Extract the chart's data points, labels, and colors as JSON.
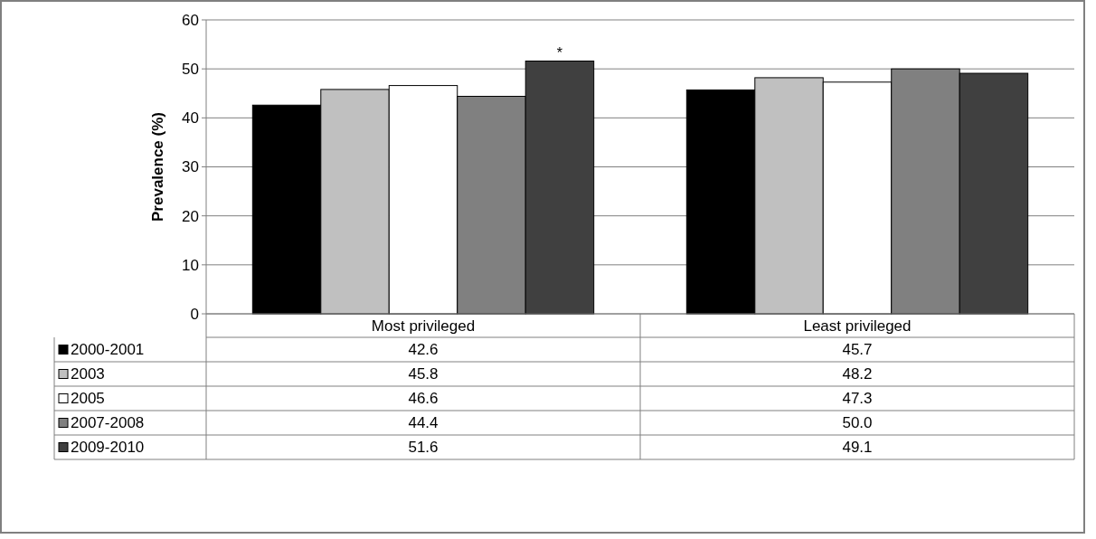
{
  "chart_data": {
    "type": "bar",
    "ylabel": "Prevalence (%)",
    "categories": [
      "Most privileged",
      "Least privileged"
    ],
    "series": [
      {
        "name": "2000-2001",
        "color": "#000000",
        "values": [
          42.6,
          45.7
        ],
        "value_labels": [
          "42.6",
          "45.7"
        ]
      },
      {
        "name": "2003",
        "color": "#c0c0c0",
        "values": [
          45.8,
          48.2
        ],
        "value_labels": [
          "45.8",
          "48.2"
        ]
      },
      {
        "name": "2005",
        "color": "#ffffff",
        "values": [
          46.6,
          47.3
        ],
        "value_labels": [
          "46.6",
          "47.3"
        ]
      },
      {
        "name": "2007-2008",
        "color": "#808080",
        "values": [
          44.4,
          50.0
        ],
        "value_labels": [
          "44.4",
          "50.0"
        ]
      },
      {
        "name": "2009-2010",
        "color": "#404040",
        "values": [
          51.6,
          49.1
        ],
        "value_labels": [
          "51.6",
          "49.1"
        ]
      }
    ],
    "ylim": [
      0,
      60
    ],
    "yticks": [
      0,
      10,
      20,
      30,
      40,
      50,
      60
    ],
    "grid": "y",
    "legend": "bottom",
    "annotations": [
      "*"
    ]
  }
}
